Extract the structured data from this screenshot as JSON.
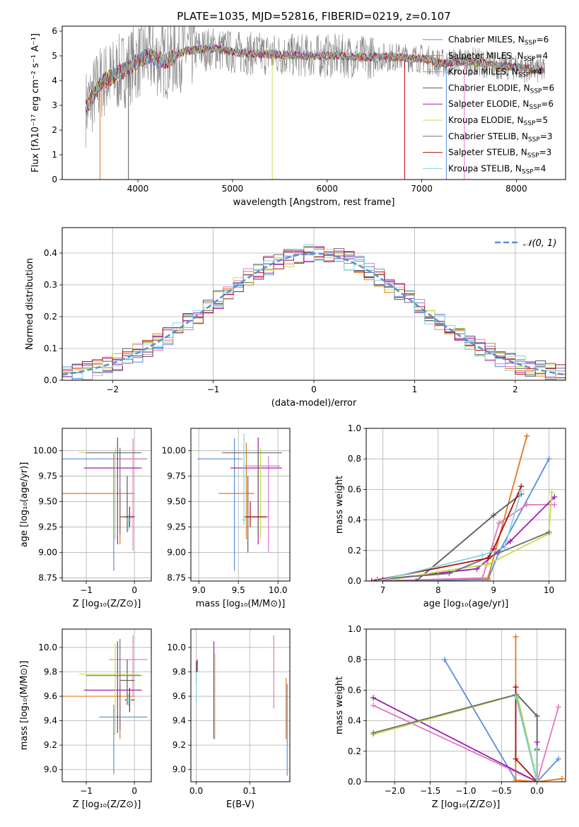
{
  "figure": {
    "title": "PLATE=1035, MJD=52816, FIBERID=0219, z=0.107"
  },
  "colors": {
    "series": [
      "#5b8ed8",
      "#e3781f",
      "#e377c2",
      "#595959",
      "#9b1fae",
      "#c4e04a",
      "#6e6e6e",
      "#b01010",
      "#7fd6e0"
    ]
  },
  "chart_data": [
    {
      "id": "spectrum",
      "type": "line",
      "title": "PLATE=1035, MJD=52816, FIBERID=0219, z=0.107",
      "xlabel": "wavelength [Angstrom, rest frame]",
      "ylabel": "Flux [fλ10⁻¹⁷ erg cm⁻² s⁻¹ A⁻¹]",
      "xlim": [
        3200,
        8520
      ],
      "ylim": [
        0,
        6.2
      ],
      "xticks": [
        4000,
        5000,
        6000,
        7000,
        8000
      ],
      "yticks": [
        0,
        1,
        2,
        3,
        4,
        5,
        6
      ],
      "grid": false,
      "legend_position": "top-right",
      "legend": [
        {
          "label": "Chabrier MILES, N",
          "sub": "SSP",
          "tail": "=6"
        },
        {
          "label": "Salpeter MILES, N",
          "sub": "SSP",
          "tail": "=4"
        },
        {
          "label": "Kroupa MILES, N",
          "sub": "SSP",
          "tail": "=4"
        },
        {
          "label": "Chabrier ELODIE, N",
          "sub": "SSP",
          "tail": "=6"
        },
        {
          "label": "Salpeter ELODIE, N",
          "sub": "SSP",
          "tail": "=6"
        },
        {
          "label": "Kroupa ELODIE, N",
          "sub": "SSP",
          "tail": "=5"
        },
        {
          "label": "Chabrier STELIB, N",
          "sub": "SSP",
          "tail": "=3"
        },
        {
          "label": "Salpeter STELIB, N",
          "sub": "SSP",
          "tail": "=3"
        },
        {
          "label": "Kroupa STELIB, N",
          "sub": "SSP",
          "tail": "=4"
        }
      ],
      "continuum": {
        "x": [
          3450,
          3600,
          3800,
          4000,
          4100,
          4300,
          4500,
          4800,
          5000,
          5200,
          5500,
          5800,
          6100,
          6400,
          6700,
          7000,
          7200,
          7500,
          7800,
          8000,
          8300
        ],
        "y": [
          2.9,
          3.9,
          4.3,
          4.8,
          5.0,
          4.8,
          5.2,
          5.3,
          5.15,
          5.1,
          5.05,
          5.0,
          5.0,
          4.95,
          4.95,
          4.9,
          4.7,
          4.8,
          4.6,
          4.55,
          4.4
        ]
      },
      "spikes": [
        3600,
        3900,
        5420,
        6820,
        7260,
        7450
      ]
    },
    {
      "id": "residuals",
      "type": "line",
      "xlabel": "(data-model)/error",
      "ylabel": "Normed distribution",
      "xlim": [
        -2.5,
        2.5
      ],
      "ylim": [
        0,
        0.48
      ],
      "xticks": [
        -2,
        -1,
        0,
        1,
        2
      ],
      "yticks": [
        0.0,
        0.1,
        0.2,
        0.3,
        0.4
      ],
      "grid": true,
      "legend_position": "top-right",
      "legend": [
        {
          "label": "𝒩(0, 1)"
        }
      ],
      "bin_width": 0.1
    },
    {
      "id": "age_vs_Z",
      "type": "scatter",
      "xlabel": "Z [log₁₀(Z/Z⊙)]",
      "ylabel": "age  [log₁₀(age/yr)]",
      "xlim": [
        -1.5,
        0.35
      ],
      "ylim": [
        8.72,
        10.22
      ],
      "xticks": [
        -1,
        0
      ],
      "yticks": [
        8.75,
        9.0,
        9.25,
        9.5,
        9.75,
        10.0
      ],
      "grid": true,
      "points": [
        {
          "x": -0.43,
          "y": 9.92,
          "xerr": [
            1.3,
            0.7
          ],
          "yerr": [
            1.1,
            0.05
          ]
        },
        {
          "x": -0.3,
          "y": 9.58,
          "xerr": [
            1.2,
            0.3
          ],
          "yerr": [
            0.5,
            0.05
          ]
        },
        {
          "x": -0.03,
          "y": 9.92,
          "xerr": [
            0.5,
            0.3
          ],
          "yerr": [
            0.9,
            0.2
          ]
        },
        {
          "x": -0.15,
          "y": 9.35,
          "xerr": [
            0.15,
            0.15
          ],
          "yerr": [
            0.15,
            0.4
          ]
        },
        {
          "x": -0.35,
          "y": 9.83,
          "xerr": [
            0.7,
            0.5
          ],
          "yerr": [
            0.75,
            0.3
          ]
        },
        {
          "x": -0.4,
          "y": 9.98,
          "xerr": [
            0.75,
            0.5
          ],
          "yerr": [
            0.85,
            0.05
          ]
        },
        {
          "x": -0.3,
          "y": 9.98,
          "xerr": [
            0.7,
            0.45
          ],
          "yerr": [
            0.8,
            0.05
          ]
        },
        {
          "x": -0.1,
          "y": 9.35,
          "xerr": [
            0.1,
            0.1
          ],
          "yerr": [
            0.1,
            0.1
          ]
        },
        {
          "x": -0.12,
          "y": 9.32,
          "xerr": [
            0.05,
            0.05
          ],
          "yerr": [
            0.1,
            0.05
          ]
        }
      ]
    },
    {
      "id": "age_vs_mass",
      "type": "scatter",
      "xlabel": "mass [log₁₀(M/M⊙)]",
      "xlim": [
        8.9,
        10.15
      ],
      "ylim": [
        8.72,
        10.22
      ],
      "xticks": [
        9.0,
        9.5,
        10.0
      ],
      "yticks": [
        8.75,
        9.0,
        9.25,
        9.5,
        9.75,
        10.0
      ],
      "grid": true,
      "points": [
        {
          "x": 9.45,
          "y": 9.92,
          "xerr": [
            0.47,
            0.1
          ],
          "yerr": [
            1.1,
            0.2
          ]
        },
        {
          "x": 9.6,
          "y": 9.58,
          "xerr": [
            0.35,
            0.1
          ],
          "yerr": [
            0.45,
            0.5
          ]
        },
        {
          "x": 9.88,
          "y": 9.85,
          "xerr": [
            0.3,
            0.15
          ],
          "yerr": [
            0.85,
            0.1
          ]
        },
        {
          "x": 9.62,
          "y": 9.35,
          "xerr": [
            0.05,
            0.25
          ],
          "yerr": [
            0.35,
            0.4
          ]
        },
        {
          "x": 9.75,
          "y": 9.83,
          "xerr": [
            0.35,
            0.3
          ],
          "yerr": [
            0.75,
            0.3
          ]
        },
        {
          "x": 9.78,
          "y": 9.98,
          "xerr": [
            0.5,
            0.25
          ],
          "yerr": [
            0.85,
            0.05
          ]
        },
        {
          "x": 9.75,
          "y": 9.98,
          "xerr": [
            0.45,
            0.3
          ],
          "yerr": [
            0.8,
            0.05
          ]
        },
        {
          "x": 9.65,
          "y": 9.35,
          "xerr": [
            0.05,
            0.2
          ],
          "yerr": [
            0.1,
            0.15
          ]
        },
        {
          "x": 9.57,
          "y": 9.32,
          "xerr": [
            0.03,
            0.03
          ],
          "yerr": [
            0.05,
            0.85
          ]
        }
      ]
    },
    {
      "id": "weight_vs_age",
      "type": "line",
      "xlabel": "age  [log₁₀(age/yr)]",
      "ylabel": "mass weight",
      "xlim": [
        6.7,
        10.3
      ],
      "ylim": [
        0,
        1
      ],
      "xticks": [
        7,
        8,
        9,
        10
      ],
      "yticks": [
        0.0,
        0.2,
        0.4,
        0.6,
        0.8,
        1.0
      ],
      "grid": true,
      "series": [
        {
          "x": [
            7.0,
            8.9,
            9.1,
            10.0
          ],
          "y": [
            0.0,
            0.01,
            0.19,
            0.8
          ]
        },
        {
          "x": [
            6.9,
            8.9,
            9.6
          ],
          "y": [
            0.0,
            0.02,
            0.95
          ]
        },
        {
          "x": [
            6.8,
            8.8,
            9.1,
            9.6,
            10.1
          ],
          "y": [
            0.0,
            0.02,
            0.38,
            0.5,
            0.5
          ]
        },
        {
          "x": [
            6.9,
            7.6,
            9.0,
            9.5
          ],
          "y": [
            0.0,
            0.0,
            0.43,
            0.57
          ]
        },
        {
          "x": [
            7.0,
            8.7,
            9.3,
            10.1
          ],
          "y": [
            0.01,
            0.08,
            0.26,
            0.55
          ]
        },
        {
          "x": [
            7.2,
            8.0,
            8.9,
            10.0,
            10.05
          ],
          "y": [
            0.01,
            0.06,
            0.11,
            0.31,
            0.58
          ]
        },
        {
          "x": [
            6.9,
            8.2,
            10.0
          ],
          "y": [
            0.01,
            0.05,
            0.32
          ]
        },
        {
          "x": [
            6.8,
            8.9,
            9.0,
            9.5
          ],
          "y": [
            0.0,
            0.15,
            0.21,
            0.62
          ]
        },
        {
          "x": [
            6.9,
            8.8,
            9.2,
            9.5
          ],
          "y": [
            0.0,
            0.17,
            0.22,
            0.59
          ]
        }
      ]
    },
    {
      "id": "mass_vs_Z",
      "type": "scatter",
      "xlabel": "Z [log₁₀(Z/Z⊙)]",
      "ylabel": "mass [log₁₀(M/M⊙)]",
      "xlim": [
        -1.5,
        0.35
      ],
      "ylim": [
        8.9,
        10.15
      ],
      "xticks": [
        -1,
        0
      ],
      "yticks": [
        9.0,
        9.2,
        9.4,
        9.6,
        9.8,
        10.0
      ],
      "grid": true,
      "points": [
        {
          "x": -0.43,
          "y": 9.43,
          "xerr": [
            0.3,
            0.7
          ],
          "yerr": [
            0.47,
            0.1
          ]
        },
        {
          "x": -0.3,
          "y": 9.6,
          "xerr": [
            1.2,
            0.3
          ],
          "yerr": [
            0.35,
            0.1
          ]
        },
        {
          "x": -0.03,
          "y": 9.9,
          "xerr": [
            0.5,
            0.3
          ],
          "yerr": [
            0.3,
            0.2
          ]
        },
        {
          "x": -0.15,
          "y": 9.73,
          "xerr": [
            0.15,
            0.15
          ],
          "yerr": [
            0.2,
            0.17
          ]
        },
        {
          "x": -0.35,
          "y": 9.65,
          "xerr": [
            0.7,
            0.5
          ],
          "yerr": [
            0.35,
            0.4
          ]
        },
        {
          "x": -0.4,
          "y": 9.78,
          "xerr": [
            0.75,
            0.5
          ],
          "yerr": [
            0.5,
            0.25
          ]
        },
        {
          "x": -0.3,
          "y": 9.77,
          "xerr": [
            0.7,
            0.45
          ],
          "yerr": [
            0.45,
            0.3
          ]
        },
        {
          "x": -0.1,
          "y": 9.57,
          "xerr": [
            0.1,
            0.1
          ],
          "yerr": [
            0.1,
            0.1
          ]
        },
        {
          "x": -0.12,
          "y": 9.57,
          "xerr": [
            0.05,
            0.05
          ],
          "yerr": [
            0.05,
            0.05
          ]
        }
      ]
    },
    {
      "id": "mass_vs_ebv",
      "type": "scatter",
      "xlabel": "E(B-V)",
      "xlim": [
        -0.01,
        0.175
      ],
      "ylim": [
        8.9,
        10.15
      ],
      "xticks": [
        0.0,
        0.1
      ],
      "yticks": [
        9.0,
        9.2,
        9.4,
        9.6,
        9.8,
        10.0
      ],
      "grid": true,
      "points": [
        {
          "x": 0.17,
          "y": 9.4,
          "yerr": [
            0.45,
            0.3
          ]
        },
        {
          "x": 0.168,
          "y": 9.5,
          "yerr": [
            0.25,
            0.25
          ]
        },
        {
          "x": 0.145,
          "y": 9.8,
          "yerr": [
            0.3,
            0.3
          ]
        },
        {
          "x": 0.0,
          "y": 9.82,
          "yerr": [
            0.05,
            0.07
          ]
        },
        {
          "x": 0.033,
          "y": 9.65,
          "yerr": [
            0.4,
            0.4
          ]
        },
        {
          "x": 0.035,
          "y": 9.6,
          "yerr": [
            0.35,
            0.35
          ]
        },
        {
          "x": 0.0,
          "y": 9.75,
          "yerr": [
            0.05,
            0.05
          ]
        },
        {
          "x": 0.002,
          "y": 9.85,
          "yerr": [
            0.05,
            0.05
          ]
        },
        {
          "x": 0.0,
          "y": 9.65,
          "yerr": [
            0.1,
            0.15
          ]
        }
      ]
    },
    {
      "id": "weight_vs_Z",
      "type": "line",
      "xlabel": "Z [log₁₀(Z/Z⊙)]",
      "ylabel": "mass weight",
      "xlim": [
        -2.4,
        0.4
      ],
      "ylim": [
        0,
        1
      ],
      "xticks": [
        -2.0,
        -1.5,
        -1.0,
        -0.5,
        0.0
      ],
      "yticks": [
        0.0,
        0.2,
        0.4,
        0.6,
        0.8,
        1.0
      ],
      "grid": true,
      "series": [
        {
          "x": [
            -1.3,
            -0.3,
            0.0,
            0.3
          ],
          "y": [
            0.8,
            0.01,
            0.0,
            0.15
          ]
        },
        {
          "x": [
            -0.3,
            -0.3,
            0.0,
            0.35
          ],
          "y": [
            0.95,
            0.01,
            0.0,
            0.02
          ]
        },
        {
          "x": [
            -2.3,
            0.0,
            0.3
          ],
          "y": [
            0.5,
            0.0,
            0.49
          ]
        },
        {
          "x": [
            -0.28,
            0.0,
            0.0
          ],
          "y": [
            0.57,
            0.43,
            0.0
          ]
        },
        {
          "x": [
            -2.3,
            0.0,
            0.0
          ],
          "y": [
            0.55,
            0.0,
            0.26
          ]
        },
        {
          "x": [
            -2.3,
            -0.28,
            0.0,
            0.0
          ],
          "y": [
            0.31,
            0.57,
            0.01,
            0.11
          ]
        },
        {
          "x": [
            -2.3,
            -0.3,
            0.0
          ],
          "y": [
            0.32,
            0.57,
            0.0
          ]
        },
        {
          "x": [
            -0.3,
            -0.3,
            0.0,
            0.0
          ],
          "y": [
            0.62,
            0.15,
            0.0,
            0.21
          ]
        },
        {
          "x": [
            -0.3,
            0.0,
            0.0
          ],
          "y": [
            0.56,
            0.0,
            0.22
          ]
        }
      ]
    }
  ]
}
